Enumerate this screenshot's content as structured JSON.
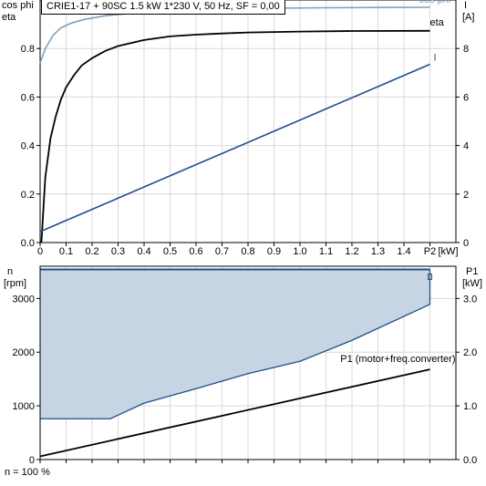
{
  "header": {
    "info": "CRIE1-17 + 90SC   1.5 kW   1*230 V, 50 Hz, SF = 0,00"
  },
  "footer": {
    "speed_note": "n = 100 %"
  },
  "colors": {
    "cosphi": "#7f9fbf",
    "eta": "#000000",
    "current": "#1f4f8c",
    "speed": "#1f4f8c",
    "speed_fill": "#c6d4e3",
    "power": "#000000",
    "grid": "#d9d9d9"
  },
  "chart_data": [
    {
      "type": "line",
      "title": "",
      "xlabel": "P2 [kW]",
      "x_tick_labels": [
        "0",
        "0.1",
        "0.2",
        "0.3",
        "0.4",
        "0.5",
        "0.6",
        "0.7",
        "0.8",
        "0.9",
        "1.0",
        "1.1",
        "1.2",
        "1.3",
        "1.4",
        "P2"
      ],
      "xlim": [
        0,
        1.6
      ],
      "ylabel_left": [
        "cos phi",
        "eta"
      ],
      "ylim_left": [
        0,
        1.0
      ],
      "y_ticks_left": [
        0.0,
        0.2,
        0.4,
        0.6,
        0.8
      ],
      "ylabel_right": [
        "I",
        "[A]"
      ],
      "ylim_right": [
        0,
        10
      ],
      "y_ticks_right": [
        0,
        2,
        4,
        6,
        8
      ],
      "grid": true,
      "series": [
        {
          "name": "cos phi",
          "axis": "left",
          "color": "#7f9fbf",
          "x": [
            0,
            0.02,
            0.05,
            0.08,
            0.12,
            0.17,
            0.25,
            0.35,
            0.5,
            0.7,
            0.9,
            1.1,
            1.3,
            1.5
          ],
          "y": [
            0.74,
            0.8,
            0.855,
            0.885,
            0.905,
            0.92,
            0.935,
            0.945,
            0.955,
            0.962,
            0.966,
            0.968,
            0.969,
            0.97
          ]
        },
        {
          "name": "eta",
          "axis": "left",
          "color": "#000000",
          "x": [
            0.005,
            0.02,
            0.04,
            0.06,
            0.08,
            0.1,
            0.13,
            0.16,
            0.2,
            0.25,
            0.3,
            0.4,
            0.5,
            0.6,
            0.7,
            0.8,
            0.9,
            1.0,
            1.2,
            1.5
          ],
          "y": [
            0.0,
            0.27,
            0.43,
            0.52,
            0.59,
            0.64,
            0.69,
            0.73,
            0.76,
            0.79,
            0.81,
            0.835,
            0.85,
            0.857,
            0.862,
            0.866,
            0.868,
            0.87,
            0.872,
            0.873
          ]
        },
        {
          "name": "I",
          "axis": "right",
          "color": "#1f4f8c",
          "x": [
            0,
            1.5
          ],
          "y": [
            0.45,
            7.35
          ]
        }
      ]
    },
    {
      "type": "area",
      "title": "",
      "xlim": [
        0,
        1.6
      ],
      "ylabel_left": [
        "n",
        "[rpm]"
      ],
      "ylim_left": [
        0,
        3600
      ],
      "y_ticks_left": [
        0,
        1000,
        2000,
        3000
      ],
      "ylabel_right": [
        "P1",
        "[kW]"
      ],
      "ylim_right": [
        0,
        3.6
      ],
      "y_ticks_right": [
        0.0,
        1.0,
        2.0,
        3.0
      ],
      "grid": true,
      "series": [
        {
          "name": "",
          "role": "speed max",
          "axis": "left",
          "x": [
            0,
            1.5
          ],
          "y": [
            3540,
            3540
          ]
        },
        {
          "name": "",
          "role": "speed min",
          "axis": "left",
          "x": [
            0,
            0.27,
            0.4,
            0.6,
            0.8,
            1.0,
            1.2,
            1.5
          ],
          "y": [
            760,
            760,
            1050,
            1320,
            1600,
            1830,
            2220,
            2890
          ]
        },
        {
          "name": "P1 (motor+freq.converter)",
          "axis": "right",
          "x": [
            0,
            1.5
          ],
          "y": [
            0.06,
            1.68
          ]
        }
      ]
    }
  ]
}
